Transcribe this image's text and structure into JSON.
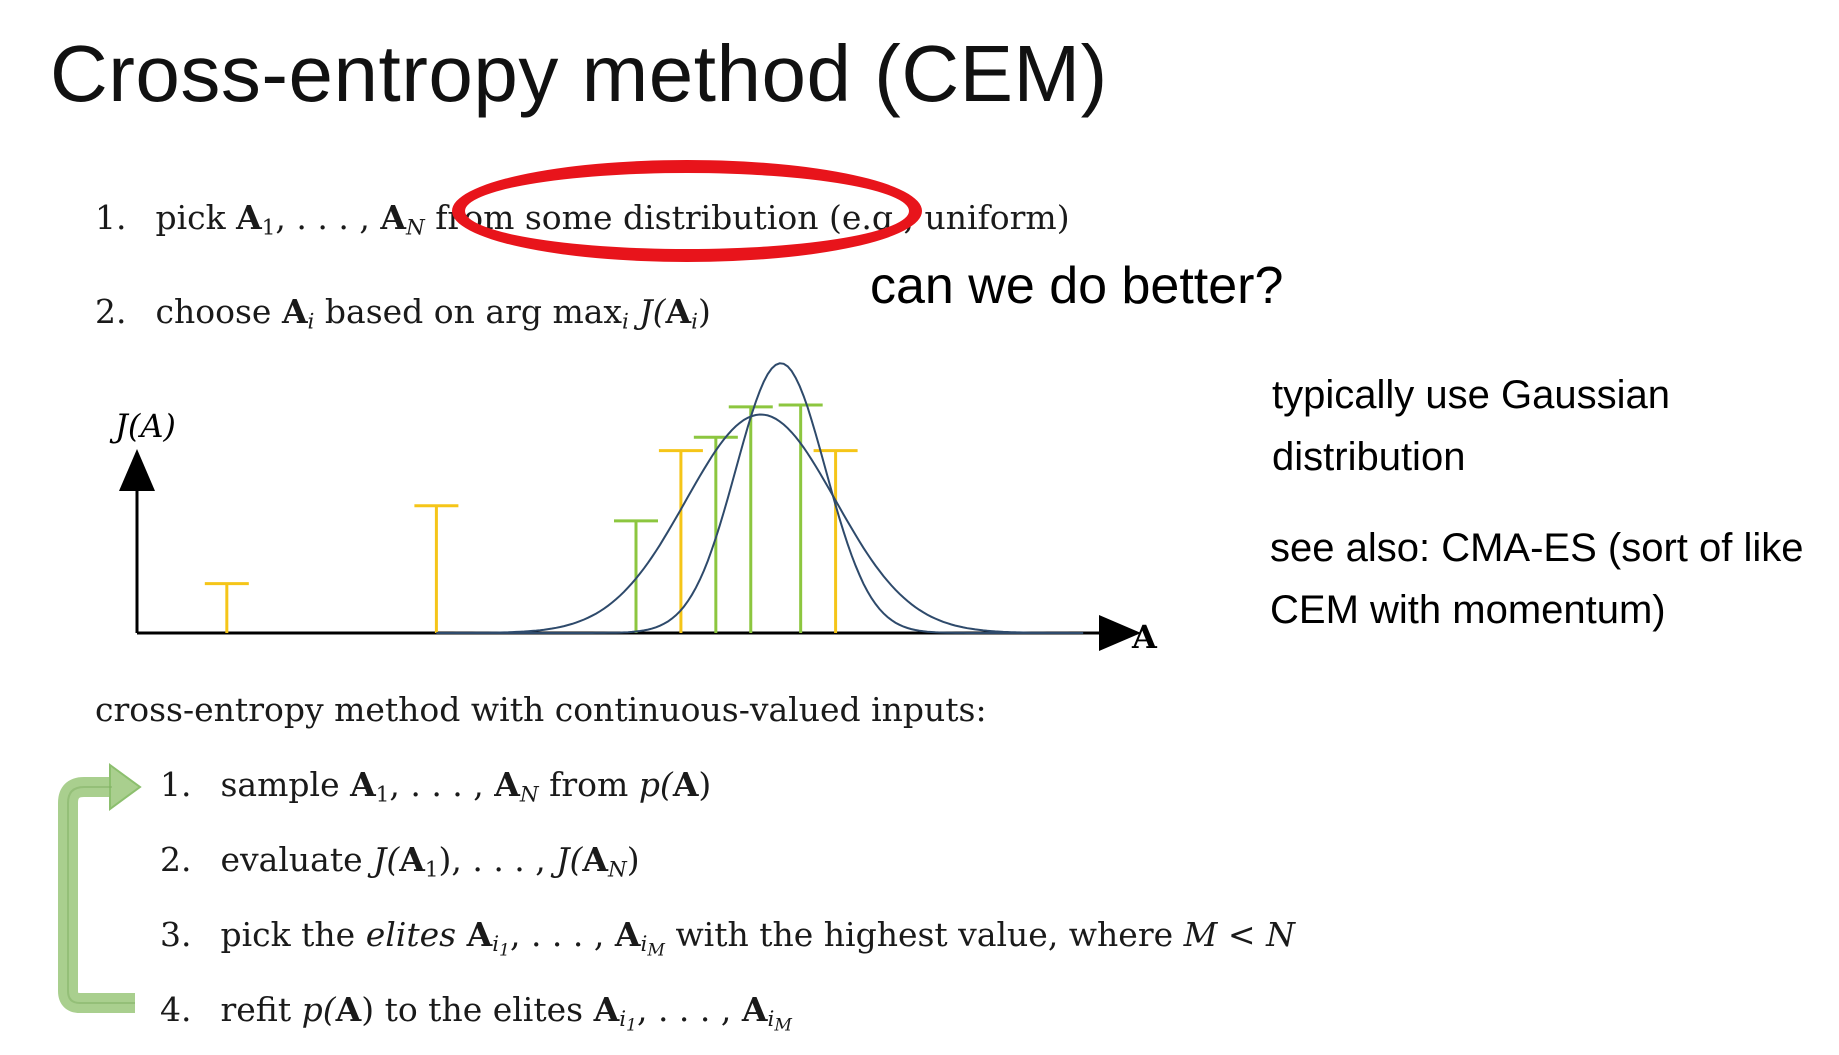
{
  "title": "Cross-entropy method (CEM)",
  "top_steps": {
    "s1": {
      "num": "1.",
      "pre": "pick",
      "var": "A",
      "sub1": "1",
      "mid": ", . . . ,",
      "subN": "N",
      "highlight": "from some distribution",
      "post": "(e.g., uniform)"
    },
    "s2": {
      "num": "2.",
      "pre": "choose",
      "var": "A",
      "sub": "i",
      "mid": "based on arg max",
      "sub2": "i",
      "post_J": "J(",
      "post_close": ")"
    }
  },
  "callout": "can we do better?",
  "side_notes": {
    "gaussian": "typically use Gaussian distribution",
    "cmaes": "see also: CMA-ES (sort of like CEM with momentum)"
  },
  "chart_data": {
    "type": "bar",
    "ylabel": "J(A)",
    "xlabel": "A",
    "bars": [
      {
        "x": 0.09,
        "h": 0.26,
        "color": "#f5c518"
      },
      {
        "x": 0.3,
        "h": 0.67,
        "color": "#f5c518"
      },
      {
        "x": 0.5,
        "h": 0.59,
        "color": "#8cc63f"
      },
      {
        "x": 0.545,
        "h": 0.96,
        "color": "#f5c518"
      },
      {
        "x": 0.58,
        "h": 1.03,
        "color": "#8cc63f"
      },
      {
        "x": 0.615,
        "h": 1.19,
        "color": "#8cc63f"
      },
      {
        "x": 0.665,
        "h": 1.2,
        "color": "#8cc63f"
      },
      {
        "x": 0.7,
        "h": 0.96,
        "color": "#f5c518"
      }
    ],
    "curves": [
      {
        "mu": 0.625,
        "sigma": 0.075,
        "peak": 1.15
      },
      {
        "mu": 0.645,
        "sigma": 0.045,
        "peak": 1.42
      }
    ],
    "colors": {
      "axis": "#000000",
      "curve": "#2e4a6b"
    }
  },
  "section_label": "cross-entropy method with continuous-valued inputs:",
  "cem_steps": {
    "s1": {
      "num": "1.",
      "pre": "sample",
      "var": "A",
      "sub1": "1",
      "mid": ", . . . ,",
      "subN": "N",
      "post": "from",
      "p": "p(",
      "close": ")"
    },
    "s2": {
      "num": "2.",
      "pre": "evaluate",
      "J": "J(",
      "sub1": "1",
      "mid": "), . . . ,",
      "subN": "N",
      "close": ")"
    },
    "s3": {
      "num": "3.",
      "pre": "pick the",
      "em": "elites",
      "var": "A",
      "i": "i",
      "sub1": "1",
      "mid": ", . . . ,",
      "subM": "M",
      "post": "with the highest value, where",
      "cond": "M < N"
    },
    "s4": {
      "num": "4.",
      "pre": "refit",
      "p": "p(",
      "close": ")",
      "post": "to the elites",
      "var": "A",
      "i": "i",
      "sub1": "1",
      "mid": ", . . . ,",
      "subM": "M"
    }
  },
  "arrow_color": "#a9cf8e"
}
